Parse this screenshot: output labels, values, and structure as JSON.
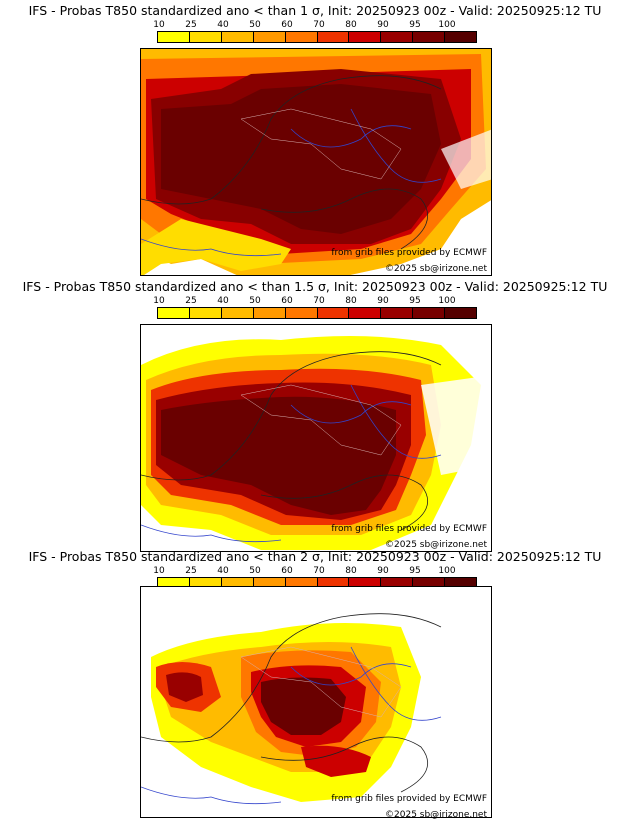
{
  "colorbar": {
    "ticks": [
      "10",
      "25",
      "40",
      "50",
      "60",
      "70",
      "80",
      "90",
      "95",
      "100"
    ],
    "colors": [
      "#ffff00",
      "#ffdd00",
      "#ffbb00",
      "#ff9900",
      "#ff7700",
      "#ee3300",
      "#cc0000",
      "#990000",
      "#770000",
      "#550000"
    ]
  },
  "panels": [
    {
      "title": "IFS - Probas T850  standardized ano < than 1 σ, Init: 20250923 00z - Valid: 20250925:12 TU",
      "credit_grib": "from grib files provided by ECMWF",
      "credit_site": "©2025 sb@irizone.net"
    },
    {
      "title": "IFS - Probas T850  standardized ano < than 1.5 σ, Init: 20250923 00z - Valid: 20250925:12 TU",
      "credit_grib": "from grib files provided by ECMWF",
      "credit_site": "©2025 sb@irizone.net"
    },
    {
      "title": "IFS - Probas T850  standardized ano < than 2 σ, Init: 20250923 00z - Valid: 20250925:12 TU",
      "credit_grib": "from grib files provided by ECMWF",
      "credit_site": "©2025 sb@irizone.net"
    }
  ]
}
